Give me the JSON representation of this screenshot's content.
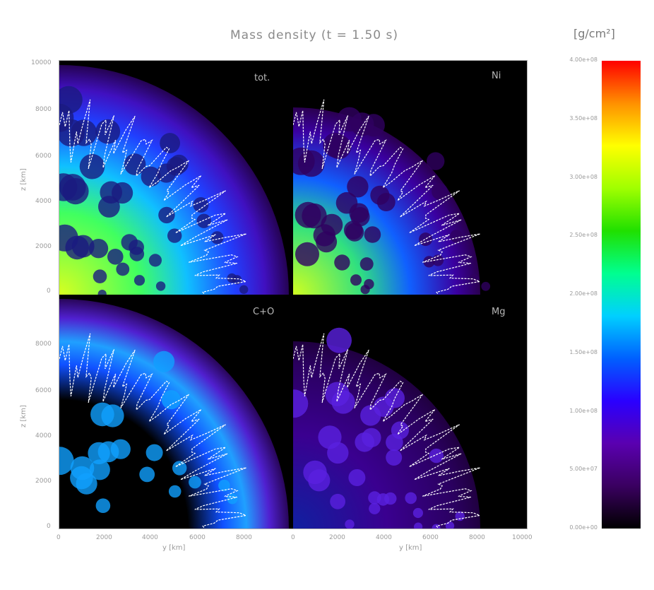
{
  "title": "Mass density (t = 1.50 s)",
  "colorbar_unit": "[g/cm²]",
  "colors": {
    "background": "#ffffff",
    "plot_background": "#000000",
    "contour": "#ffffff"
  },
  "panels": [
    {
      "label": "tot."
    },
    {
      "label": "Ni"
    },
    {
      "label": "C+O"
    },
    {
      "label": "Mg"
    }
  ],
  "axes": {
    "y_ticks_top": [
      "0",
      "2000",
      "4000",
      "6000",
      "8000",
      "10000"
    ],
    "y_ticks_bottom": [
      "0",
      "2000",
      "4000",
      "6000",
      "8000"
    ],
    "x_ticks_left": [
      "0",
      "2000",
      "4000",
      "6000",
      "8000"
    ],
    "x_ticks_right": [
      "0",
      "2000",
      "4000",
      "6000",
      "8000",
      "10000"
    ],
    "x_label_left": "y [km]",
    "x_label_right": "y [km]",
    "y_label_top": "z [km]",
    "y_label_bottom": "z [km]"
  },
  "chart_data": {
    "type": "heatmap",
    "title": "Mass density (t = 1.50 s)",
    "subplots": [
      "tot.",
      "Ni",
      "C+O",
      "Mg"
    ],
    "xlabel": "y [km]",
    "ylabel": "z [km]",
    "xlim": [
      0,
      10000
    ],
    "ylim": [
      0,
      10000
    ],
    "colorbar": {
      "label": "[g/cm²]",
      "range": [
        0,
        400000000.0
      ],
      "ticks": [
        "0.00e+00",
        "5.00e+07",
        "1.00e+08",
        "1.50e+08",
        "2.00e+08",
        "2.50e+08",
        "3.00e+08",
        "3.50e+08",
        "4.00e+08"
      ],
      "colormap": [
        "#000000",
        "#3a0060",
        "#5a00b0",
        "#2a00ff",
        "#0060ff",
        "#00d0ff",
        "#00ff90",
        "#20e000",
        "#a0ff00",
        "#ffff00",
        "#ff9000",
        "#ff0000"
      ]
    }
  }
}
